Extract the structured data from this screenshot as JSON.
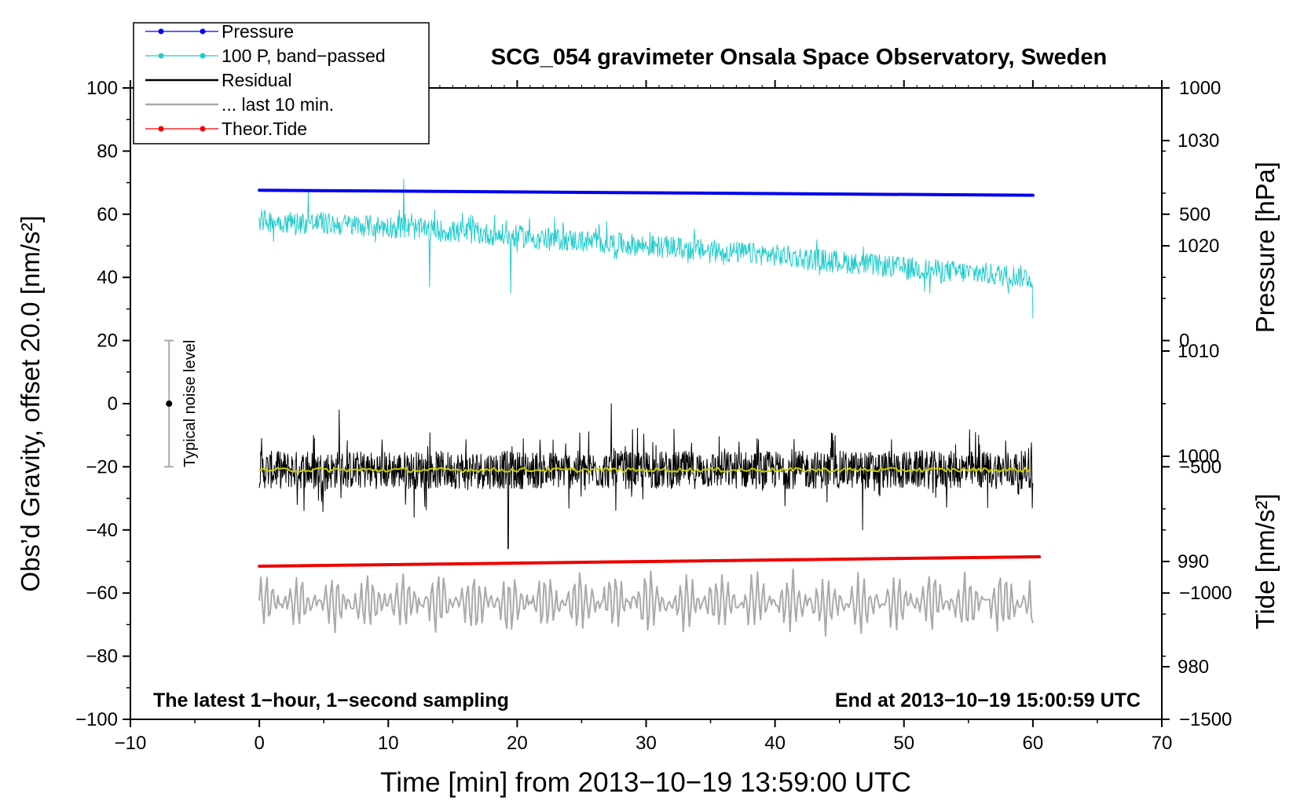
{
  "chart_data": {
    "type": "line",
    "title": "SCG_054 gravimeter Onsala Space Observatory, Sweden",
    "xlabel": "Time [min] from 2013−10−19 13:59:00 UTC",
    "ylabel_left": "Obs’d Gravity, offset 20.0 [nm/s²]",
    "ylabel_right_pressure": "Pressure [hPa]",
    "ylabel_right_tide": "Tide [nm/s²]",
    "xlim": [
      -10,
      70
    ],
    "ylim": [
      -100,
      100
    ],
    "pressure_axis_range": [
      975,
      1035
    ],
    "tide_axis_range": [
      -1500,
      1000
    ],
    "x_ticks": [
      "−10",
      "0",
      "10",
      "20",
      "30",
      "40",
      "50",
      "60",
      "70"
    ],
    "x_tick_values": [
      -10,
      0,
      10,
      20,
      30,
      40,
      50,
      60,
      70
    ],
    "y_ticks": [
      "100",
      "80",
      "60",
      "40",
      "20",
      "0",
      "−20",
      "−40",
      "−60",
      "−80",
      "−100"
    ],
    "y_tick_values": [
      100,
      80,
      60,
      40,
      20,
      0,
      -20,
      -40,
      -60,
      -80,
      -100
    ],
    "pressure_ticks": [
      "1030",
      "1020",
      "1010",
      "1000",
      "990",
      "980"
    ],
    "pressure_tick_values": [
      1030,
      1020,
      1010,
      1000,
      990,
      980
    ],
    "tide_ticks": [
      "1000",
      "500",
      "0",
      "−500",
      "−1000",
      "−1500"
    ],
    "tide_tick_values": [
      1000,
      500,
      0,
      -500,
      -1000,
      -1500
    ],
    "annotation_left": "The latest 1−hour, 1−second sampling",
    "annotation_right": "End at 2013−10−19 15:00:59 UTC",
    "noise_label": "Typical noise level",
    "noise_bar": {
      "x": -7,
      "center": 0,
      "low": -20,
      "high": 20
    },
    "legend": [
      {
        "label": "Pressure",
        "color": "#0000ee",
        "marker": true
      },
      {
        "label": "100 P, band−passed",
        "color": "#22cccc",
        "marker": true
      },
      {
        "label": "Residual",
        "color": "#000000",
        "marker": false
      },
      {
        "label": "... last 10 min.",
        "color": "#aaaaaa",
        "marker": false
      },
      {
        "label": "Theor.Tide",
        "color": "#ee0000",
        "marker": true
      }
    ],
    "series": [
      {
        "name": "Pressure",
        "color": "#0000ee",
        "x": [
          0,
          60
        ],
        "y": [
          67.6,
          66.0
        ],
        "width": 4
      },
      {
        "name": "100 P, band−passed",
        "color": "#22cccc",
        "x": [
          0,
          10,
          20,
          30,
          40,
          50,
          60
        ],
        "y": [
          58,
          56,
          53,
          50,
          47,
          43,
          40
        ],
        "noise": 3.5,
        "spikes": [
          [
            3.8,
            67
          ],
          [
            11.2,
            71
          ],
          [
            13.2,
            37
          ],
          [
            19.5,
            35
          ],
          [
            52,
            35
          ],
          [
            60,
            27
          ]
        ]
      },
      {
        "name": "Residual",
        "color": "#000000",
        "x": [
          0,
          60
        ],
        "y": [
          -21,
          -21
        ],
        "noise": 6,
        "spikes": [
          [
            6.2,
            -2
          ],
          [
            12,
            -36
          ],
          [
            19.3,
            -46
          ],
          [
            27.3,
            0
          ],
          [
            46.8,
            -40
          ]
        ]
      },
      {
        "name": "Residual smoothed",
        "color": "#cccc00",
        "x": [
          0,
          60
        ],
        "y": [
          -21,
          -21
        ],
        "noise": 0.7
      },
      {
        "name": "... last 10 min.",
        "color": "#aaaaaa",
        "x": [
          0,
          60
        ],
        "y": [
          -63,
          -63
        ],
        "amplitude": 9
      },
      {
        "name": "Theor.Tide",
        "color": "#ee0000",
        "x": [
          0,
          60.5
        ],
        "y": [
          -51.5,
          -48.5
        ],
        "width": 4
      }
    ]
  }
}
